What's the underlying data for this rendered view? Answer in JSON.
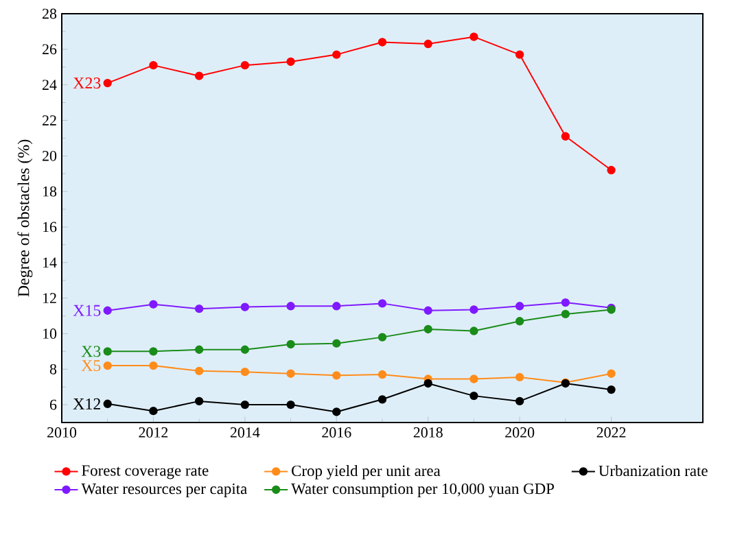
{
  "chart_data": {
    "type": "line",
    "ylabel": "Degree of obstacles (%)",
    "x": [
      2011,
      2012,
      2013,
      2014,
      2015,
      2016,
      2017,
      2018,
      2019,
      2020,
      2021,
      2022
    ],
    "series": [
      {
        "name": "Forest coverage rate",
        "color": "#ff0000",
        "values": [
          24.1,
          25.1,
          24.5,
          25.1,
          25.3,
          25.7,
          26.4,
          26.3,
          26.7,
          25.7,
          21.1,
          19.2
        ]
      },
      {
        "name": "Crop yield per unit area",
        "color": "#ff8c1a",
        "values": [
          8.2,
          8.2,
          7.9,
          7.85,
          7.75,
          7.65,
          7.7,
          7.45,
          7.45,
          7.55,
          7.25,
          7.75
        ]
      },
      {
        "name": "Urbanization rate",
        "color": "#000000",
        "values": [
          6.05,
          5.65,
          6.2,
          6.0,
          6.0,
          5.6,
          6.3,
          7.2,
          6.5,
          6.2,
          7.2,
          6.85
        ]
      },
      {
        "name": "Water resources per capita",
        "color": "#7f1aff",
        "values": [
          11.3,
          11.65,
          11.4,
          11.5,
          11.55,
          11.55,
          11.7,
          11.3,
          11.35,
          11.55,
          11.75,
          11.45
        ]
      },
      {
        "name": "Water consumption per 10,000 yuan GDP",
        "color": "#1a8c1a",
        "values": [
          9.0,
          9.0,
          9.1,
          9.1,
          9.4,
          9.45,
          9.8,
          10.25,
          10.15,
          10.7,
          11.1,
          11.35
        ]
      }
    ],
    "annotations": [
      "X23",
      "X5",
      "X12",
      "X15",
      "X3"
    ],
    "xlim": [
      2010,
      2024
    ],
    "xticks": [
      2010,
      2012,
      2014,
      2016,
      2018,
      2020,
      2022
    ],
    "ylim": [
      5,
      28
    ],
    "yticks": [
      6,
      8,
      10,
      12,
      14,
      16,
      18,
      20,
      22,
      24,
      26,
      28
    ],
    "legend": "bottom",
    "marker": "circle",
    "line_style": "solid",
    "grid": false
  }
}
